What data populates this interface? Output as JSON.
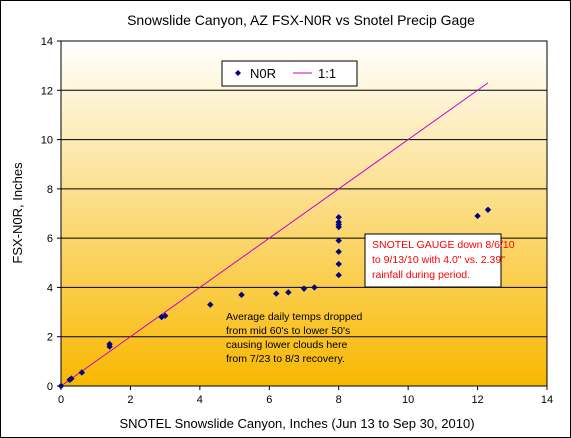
{
  "chart_data": {
    "type": "scatter",
    "title": "Snowslide Canyon, AZ FSX-N0R  vs Snotel Precip Gage",
    "xlabel": "SNOTEL Snowslide Canyon, Inches (Jun 13 to Sep 30, 2010)",
    "ylabel": "FSX-N0R, Inches",
    "xlim": [
      0,
      14
    ],
    "ylim": [
      0,
      14
    ],
    "xticks": [
      "0",
      "2",
      "4",
      "6",
      "8",
      "10",
      "12",
      "14"
    ],
    "yticks": [
      "0",
      "2",
      "4",
      "6",
      "8",
      "10",
      "12",
      "14"
    ],
    "grid": "horizontal",
    "legend_position": "top-center",
    "colors": {
      "points": "#000080",
      "line": "#cc00cc",
      "annotation_red": "#ff0000",
      "bg_top": "#ffffff",
      "bg_bottom": "#f8b800"
    },
    "series": [
      {
        "name": "N0R",
        "marker": "diamond",
        "points": [
          [
            0.0,
            0.0
          ],
          [
            0.25,
            0.25
          ],
          [
            0.3,
            0.3
          ],
          [
            0.6,
            0.55
          ],
          [
            1.4,
            1.6
          ],
          [
            1.4,
            1.7
          ],
          [
            2.9,
            2.8
          ],
          [
            3.0,
            2.85
          ],
          [
            4.3,
            3.3
          ],
          [
            5.2,
            3.7
          ],
          [
            6.2,
            3.75
          ],
          [
            6.55,
            3.8
          ],
          [
            7.0,
            3.95
          ],
          [
            7.3,
            4.0
          ],
          [
            8.0,
            4.5
          ],
          [
            8.0,
            4.95
          ],
          [
            8.0,
            5.45
          ],
          [
            8.0,
            5.9
          ],
          [
            8.0,
            6.45
          ],
          [
            8.0,
            6.55
          ],
          [
            8.0,
            6.65
          ],
          [
            8.0,
            6.85
          ],
          [
            12.0,
            6.9
          ],
          [
            12.3,
            7.15
          ]
        ]
      },
      {
        "name": "1:1",
        "type": "line",
        "points": [
          [
            0,
            0
          ],
          [
            12.3,
            12.3
          ]
        ]
      }
    ],
    "annotations": [
      {
        "lines": [
          "SNOTEL GAUGE down  8/6/10",
          "to 9/13/10 with 4.0\" vs. 2.39\"",
          "rainfall during period."
        ],
        "color": "#ff0000",
        "boxed": true
      },
      {
        "lines": [
          "Average daily temps dropped",
          "from mid 60's to lower 50's",
          "causing lower clouds here",
          "from 7/23 to 8/3 recovery."
        ],
        "color": "#000000",
        "boxed": false
      }
    ]
  }
}
